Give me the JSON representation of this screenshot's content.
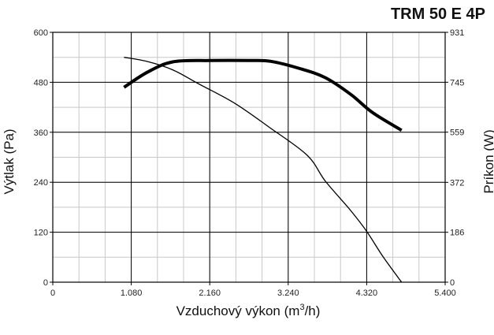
{
  "chart_data": {
    "type": "line",
    "title": "TRM 50 E 4P",
    "xlabel_main": "Vzduchový výkon (m",
    "xlabel_sup": "3",
    "xlabel_tail": "/h)",
    "ylabel_left": "Výtlak (Pa)",
    "ylabel_right": "Príkon (W)",
    "xlim": [
      0,
      5400
    ],
    "ylim_left": [
      0,
      600
    ],
    "ylim_right": [
      0,
      931
    ],
    "x_ticks": [
      {
        "value": 0,
        "label": "0"
      },
      {
        "value": 1080,
        "label": "1.080"
      },
      {
        "value": 2160,
        "label": "2.160"
      },
      {
        "value": 3240,
        "label": "3.240"
      },
      {
        "value": 4320,
        "label": "4.320"
      },
      {
        "value": 5400,
        "label": "5.400"
      }
    ],
    "y_left_ticks": [
      {
        "value": 0,
        "label": "0"
      },
      {
        "value": 120,
        "label": "120"
      },
      {
        "value": 240,
        "label": "240"
      },
      {
        "value": 360,
        "label": "360"
      },
      {
        "value": 480,
        "label": "480"
      },
      {
        "value": 600,
        "label": "600"
      }
    ],
    "y_right_ticks": [
      {
        "value": 0,
        "label": "0"
      },
      {
        "value": 186,
        "label": "186"
      },
      {
        "value": 372,
        "label": "372"
      },
      {
        "value": 559,
        "label": "559"
      },
      {
        "value": 745,
        "label": "745"
      },
      {
        "value": 931,
        "label": "931"
      }
    ],
    "grid": true,
    "series": [
      {
        "axis": "left",
        "weight": "thin",
        "points": [
          [
            980,
            540
          ],
          [
            1300,
            530
          ],
          [
            1650,
            510
          ],
          [
            2000,
            477
          ],
          [
            2500,
            430
          ],
          [
            2980,
            372
          ],
          [
            3500,
            305
          ],
          [
            3750,
            243
          ],
          [
            4100,
            172
          ],
          [
            4320,
            122
          ],
          [
            4550,
            60
          ],
          [
            4800,
            0
          ]
        ]
      },
      {
        "axis": "right",
        "weight": "thick",
        "points": [
          [
            980,
            726
          ],
          [
            1300,
            782
          ],
          [
            1650,
            821
          ],
          [
            2160,
            826
          ],
          [
            2700,
            826
          ],
          [
            3000,
            823
          ],
          [
            3400,
            796
          ],
          [
            3750,
            762
          ],
          [
            4100,
            700
          ],
          [
            4400,
            632
          ],
          [
            4800,
            566
          ]
        ]
      }
    ]
  }
}
